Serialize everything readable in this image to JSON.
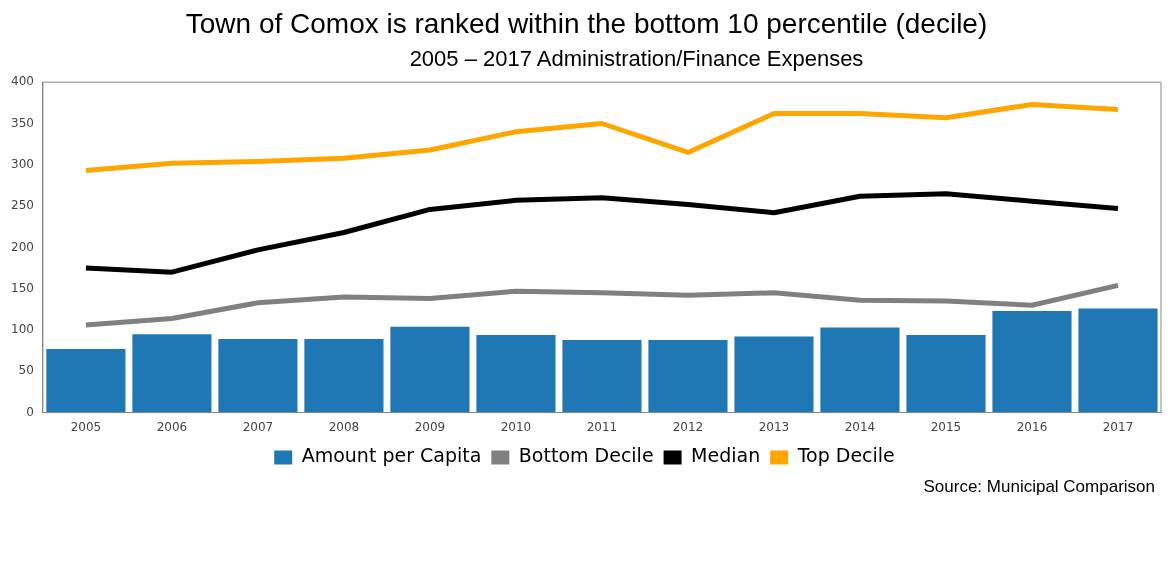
{
  "chart_data": {
    "type": "bar",
    "title": "Town of Comox is ranked within the bottom 10 percentile (decile)",
    "subtitle": "2005 – 2017 Administration/Finance Expenses",
    "categories": [
      "2005",
      "2006",
      "2007",
      "2008",
      "2009",
      "2010",
      "2011",
      "2012",
      "2013",
      "2014",
      "2015",
      "2016",
      "2017"
    ],
    "series": [
      {
        "name": "Amount per Capita",
        "color": "#1f77b4",
        "values": [
          77,
          95,
          89,
          89,
          104,
          94,
          88,
          88,
          92,
          103,
          94,
          123,
          126
        ]
      },
      {
        "name": "Bottom Decile",
        "type": "line",
        "color": "#808080",
        "values": [
          106,
          114,
          133,
          140,
          138,
          147,
          145,
          142,
          145,
          136,
          135,
          130,
          154
        ]
      },
      {
        "name": "Median",
        "type": "line",
        "color": "#000000",
        "values": [
          175,
          170,
          197,
          218,
          246,
          257,
          260,
          252,
          242,
          262,
          265,
          256,
          247
        ]
      },
      {
        "name": "Top Decile",
        "type": "line",
        "color": "#ffa500",
        "values": [
          293,
          302,
          304,
          308,
          318,
          340,
          350,
          315,
          362,
          362,
          357,
          373,
          367
        ]
      }
    ],
    "ylim": [
      0,
      400
    ],
    "yticks": [
      0,
      50,
      100,
      150,
      200,
      250,
      300,
      350,
      400
    ],
    "grid": false,
    "legend": "bottom",
    "marker": "none",
    "line_style": "solid",
    "annotations": [
      "Source: Municipal Comparison"
    ]
  }
}
